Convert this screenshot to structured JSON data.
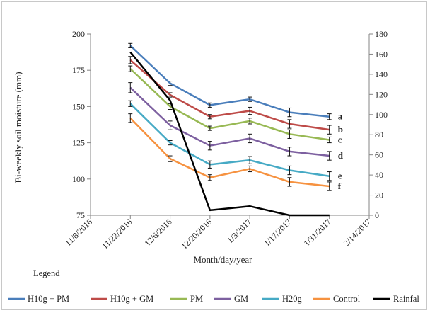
{
  "chart_data": {
    "type": "line",
    "xlabel": "Month/day/year",
    "ylabel": "Bi-weekly soil moisture (mm)",
    "y2label": "",
    "x_ticks": [
      "11/8/2016",
      "11/22/2016",
      "12/6/2016",
      "12/20/2016",
      "1/3/2017",
      "1/17/2017",
      "1/31/2017",
      "2/14/2017"
    ],
    "x": [
      "11/22/2016",
      "12/6/2016",
      "12/20/2016",
      "1/3/2017",
      "1/17/2017",
      "1/31/2017"
    ],
    "ylim": [
      75,
      200
    ],
    "y_ticks": [
      75,
      100,
      125,
      150,
      175,
      200
    ],
    "y2lim": [
      0,
      180
    ],
    "y2_ticks": [
      0,
      20,
      40,
      60,
      80,
      100,
      120,
      140,
      160,
      180
    ],
    "legend_title": "Legend",
    "legend_position": "bottom",
    "grid": false,
    "series": [
      {
        "name": "H10g + PM",
        "color": "#4a7ebb",
        "axis": "left",
        "values": [
          192,
          166,
          151,
          155,
          146,
          143
        ],
        "errors": [
          1.5,
          1.5,
          1.5,
          1.5,
          3,
          2
        ],
        "letter": "a"
      },
      {
        "name": "H10g + GM",
        "color": "#be4b48",
        "axis": "left",
        "values": [
          182,
          158,
          143,
          147,
          138,
          134
        ],
        "errors": [
          2.5,
          1.5,
          1.5,
          2.5,
          3,
          3
        ],
        "letter": "b"
      },
      {
        "name": "PM",
        "color": "#98b954",
        "axis": "left",
        "values": [
          176,
          150,
          135,
          140,
          131,
          127
        ],
        "errors": [
          2,
          2,
          1.5,
          2,
          3,
          2
        ],
        "letter": "c"
      },
      {
        "name": "GM",
        "color": "#7d60a0",
        "axis": "left",
        "values": [
          163,
          137,
          123,
          128,
          119,
          116
        ],
        "errors": [
          3.5,
          3,
          3,
          3,
          3,
          3
        ],
        "letter": "d"
      },
      {
        "name": "H20g",
        "color": "#46aac5",
        "axis": "left",
        "values": [
          152,
          125,
          110,
          113,
          106,
          102
        ],
        "errors": [
          2,
          1.5,
          2.5,
          2.5,
          3,
          3
        ],
        "letter": "e"
      },
      {
        "name": "Control",
        "color": "#f69240",
        "axis": "left",
        "values": [
          142,
          114,
          101,
          107,
          98,
          95
        ],
        "errors": [
          3,
          2,
          2,
          2,
          3,
          3
        ],
        "letter": "f"
      },
      {
        "name": "Rainfal",
        "color": "#000000",
        "axis": "right",
        "values": [
          162,
          114,
          5,
          9,
          0,
          0
        ],
        "errors": null,
        "letter": ""
      }
    ]
  }
}
